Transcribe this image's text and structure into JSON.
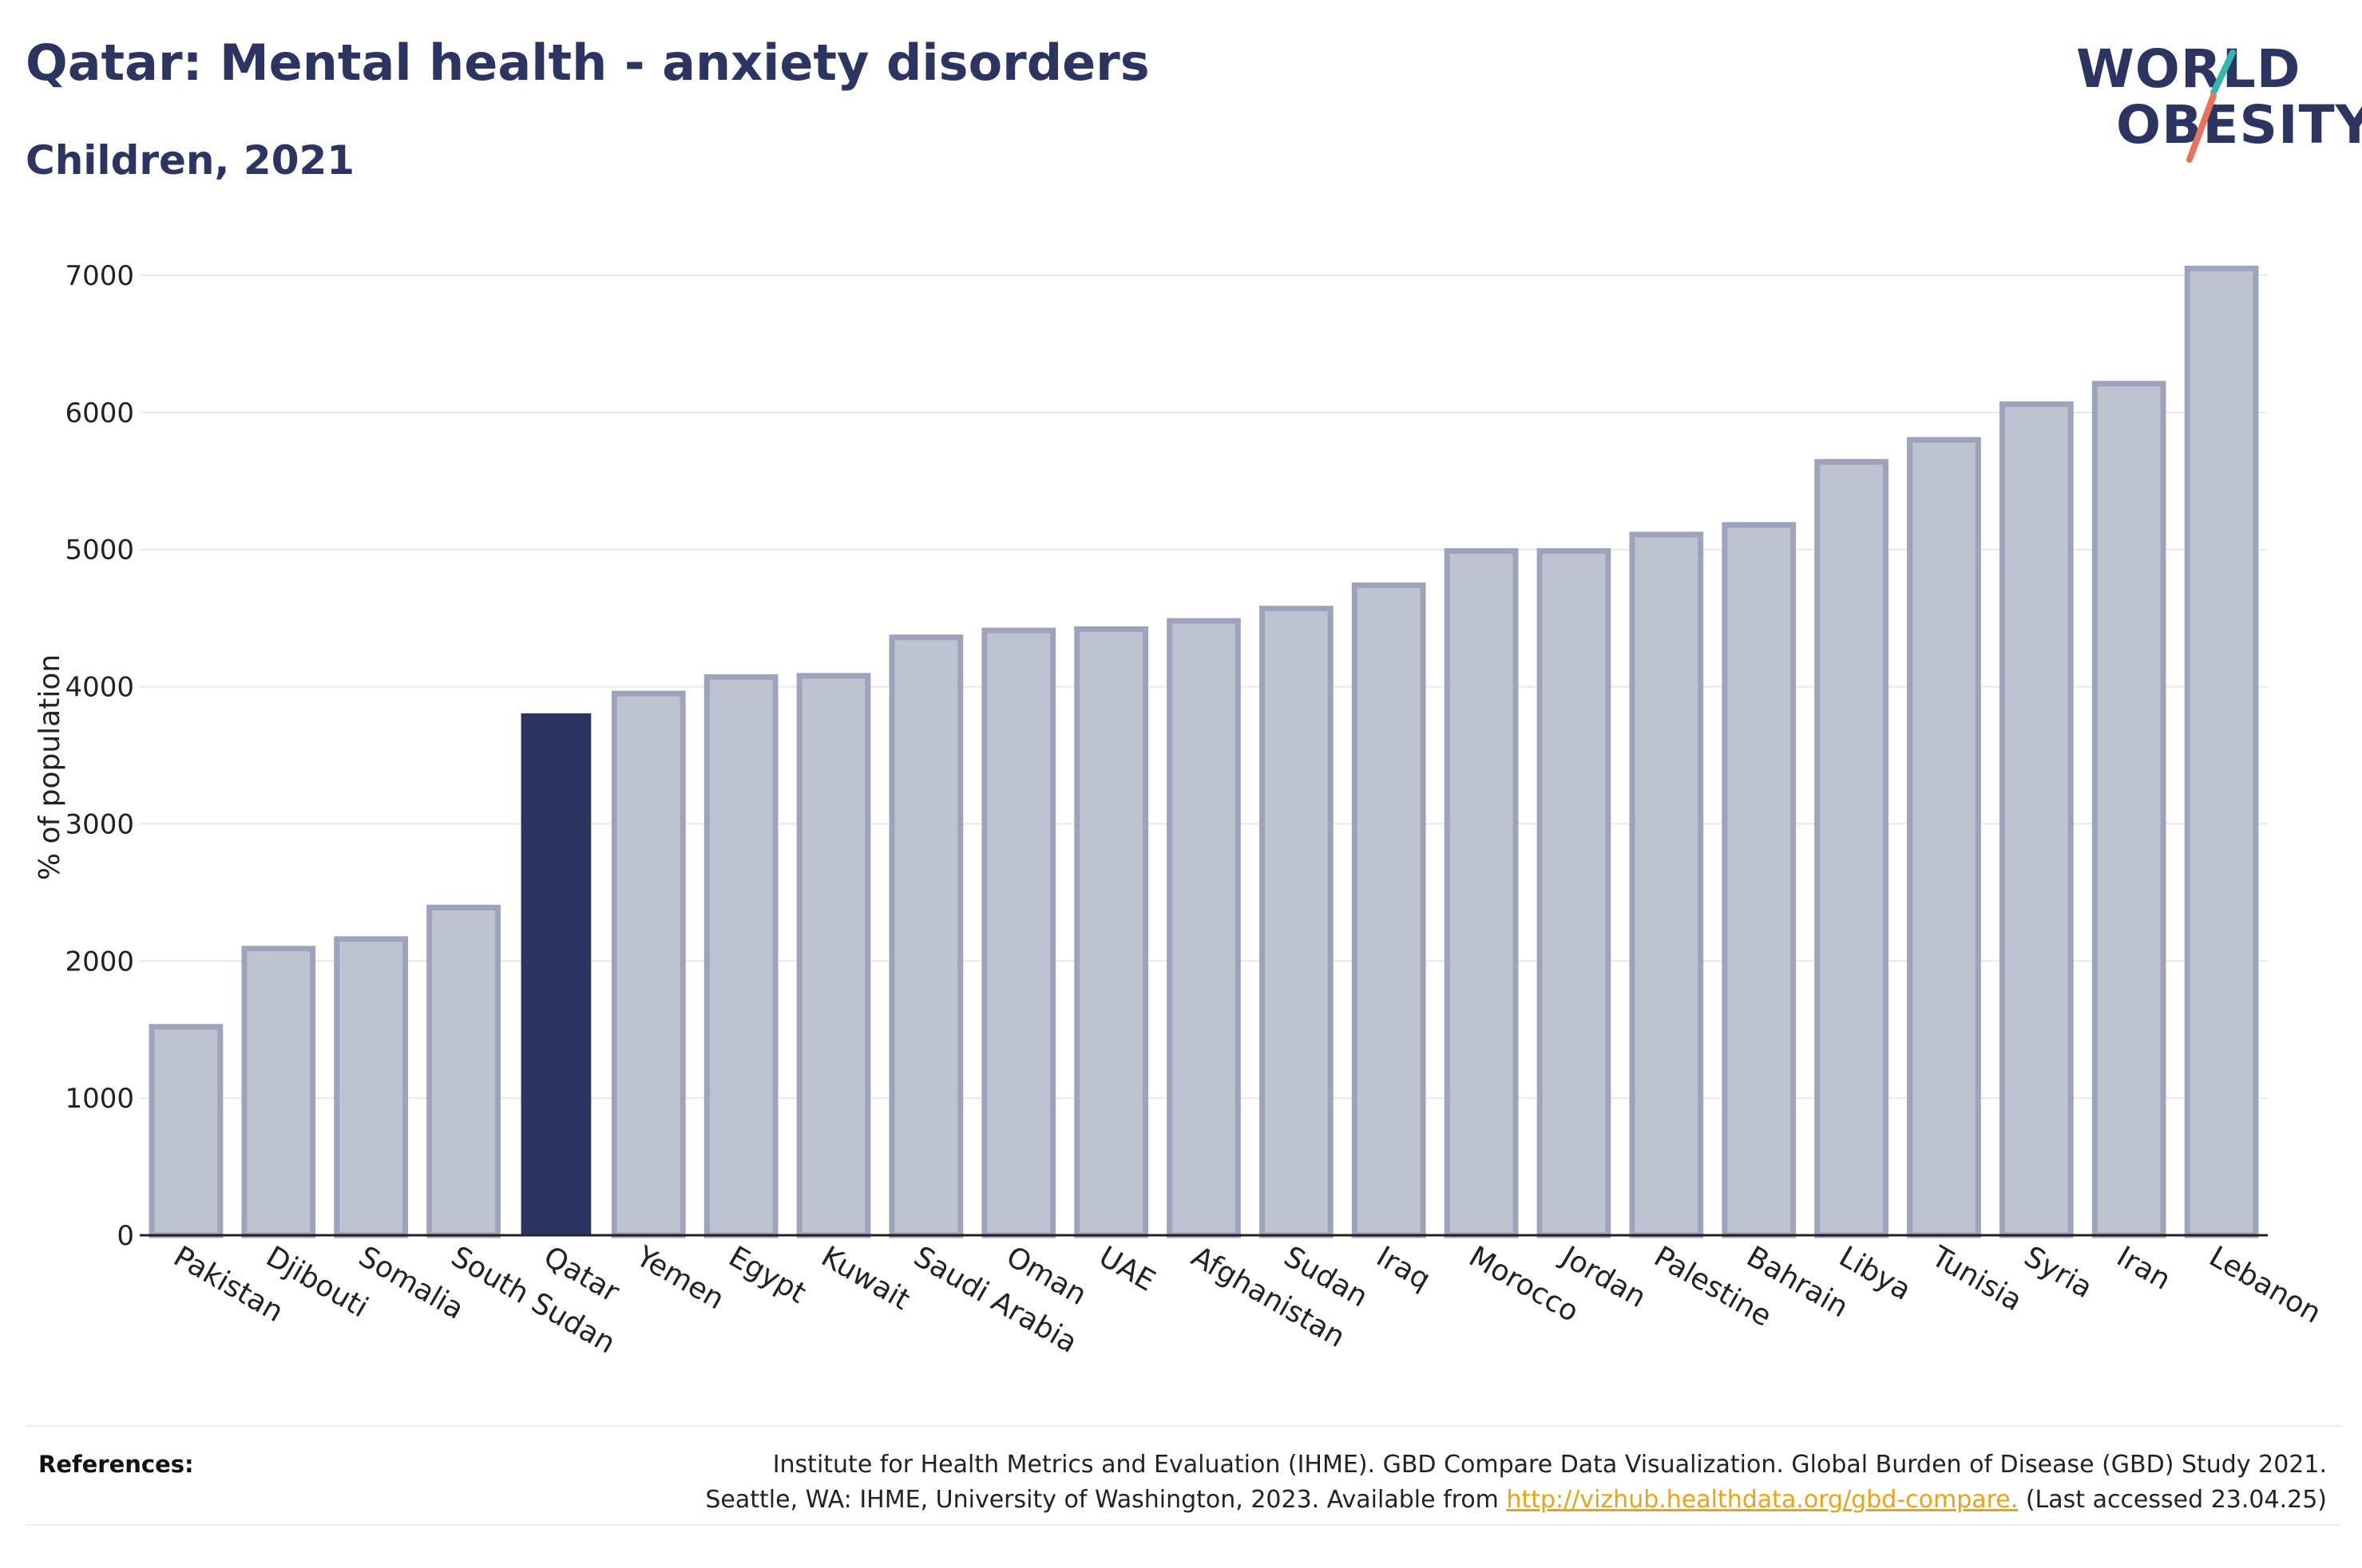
{
  "header": {
    "title": "Qatar: Mental health - anxiety disorders",
    "subtitle": "Children, 2021"
  },
  "logo": {
    "line1": "WORLD",
    "line2": "OBESITY",
    "accent_teal": "#33b5b0",
    "accent_coral": "#e8735a"
  },
  "colors": {
    "highlight_bar": "#2c3561",
    "other_bar_fill": "#bfc2cf",
    "other_bar_stroke": "#9ea3bb",
    "grid": "#e8e8ee"
  },
  "chart_data": {
    "type": "bar",
    "ylabel": "% of population",
    "xlabel": "",
    "ylim": [
      0,
      7000
    ],
    "yticks": [
      0,
      1000,
      2000,
      3000,
      4000,
      5000,
      6000,
      7000
    ],
    "grid": true,
    "highlight": "Qatar",
    "categories": [
      "Pakistan",
      "Djibouti",
      "Somalia",
      "South Sudan",
      "Qatar",
      "Yemen",
      "Egypt",
      "Kuwait",
      "Saudi Arabia",
      "Oman",
      "UAE",
      "Afghanistan",
      "Sudan",
      "Iraq",
      "Morocco",
      "Jordan",
      "Palestine",
      "Bahrain",
      "Libya",
      "Tunisia",
      "Syria",
      "Iran",
      "Lebanon"
    ],
    "values": [
      1520,
      2090,
      2160,
      2390,
      3800,
      3950,
      4070,
      4080,
      4360,
      4410,
      4420,
      4480,
      4570,
      4740,
      4990,
      4990,
      5110,
      5180,
      5640,
      5800,
      6060,
      6210,
      7050
    ]
  },
  "references": {
    "label": "References:",
    "line1": "Institute for Health Metrics and Evaluation (IHME). GBD Compare Data Visualization. Global Burden of Disease (GBD) Study 2021.",
    "line2_prefix": "Seattle, WA: IHME, University of Washington, 2023. Available from ",
    "link": "http://vizhub.healthdata.org/gbd-compare.",
    "line2_suffix": " (Last accessed 23.04.25)"
  }
}
